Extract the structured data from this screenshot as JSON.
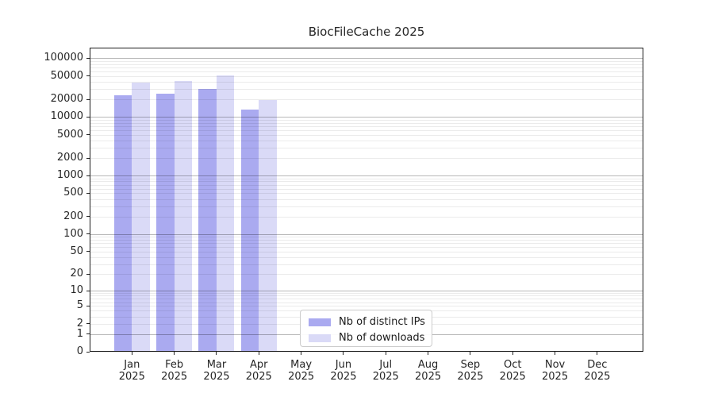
{
  "chart_data": {
    "type": "bar",
    "title": "BiocFileCache 2025",
    "x_tick_second_line": "2025",
    "categories": [
      "Jan",
      "Feb",
      "Mar",
      "Apr",
      "May",
      "Jun",
      "Jul",
      "Aug",
      "Sep",
      "Oct",
      "Nov",
      "Dec"
    ],
    "series": [
      {
        "name": "Nb of distinct IPs",
        "color": "#aaaaf0",
        "values": [
          23500,
          25200,
          29900,
          13200,
          null,
          null,
          null,
          null,
          null,
          null,
          null,
          null
        ]
      },
      {
        "name": "Nb of downloads",
        "color": "#dadaf7",
        "values": [
          38600,
          41500,
          51000,
          19300,
          null,
          null,
          null,
          null,
          null,
          null,
          null,
          null
        ]
      }
    ],
    "xlabel": "",
    "ylabel": "",
    "y_scale": "log10(1+v)",
    "ylim": [
      0,
      150000
    ],
    "y_ticks": [
      0,
      1,
      2,
      5,
      10,
      20,
      50,
      100,
      200,
      500,
      1000,
      2000,
      5000,
      10000,
      20000,
      50000,
      100000
    ],
    "grid": {
      "orientation": "horizontal",
      "major_on_decades": true,
      "minor_subs": [
        2,
        3,
        4,
        5,
        6,
        7,
        8,
        9
      ]
    },
    "legend": {
      "position": "lower center"
    },
    "colors": {
      "axis": "#1a1a1a",
      "text": "#262626",
      "background": "#ffffff"
    }
  }
}
